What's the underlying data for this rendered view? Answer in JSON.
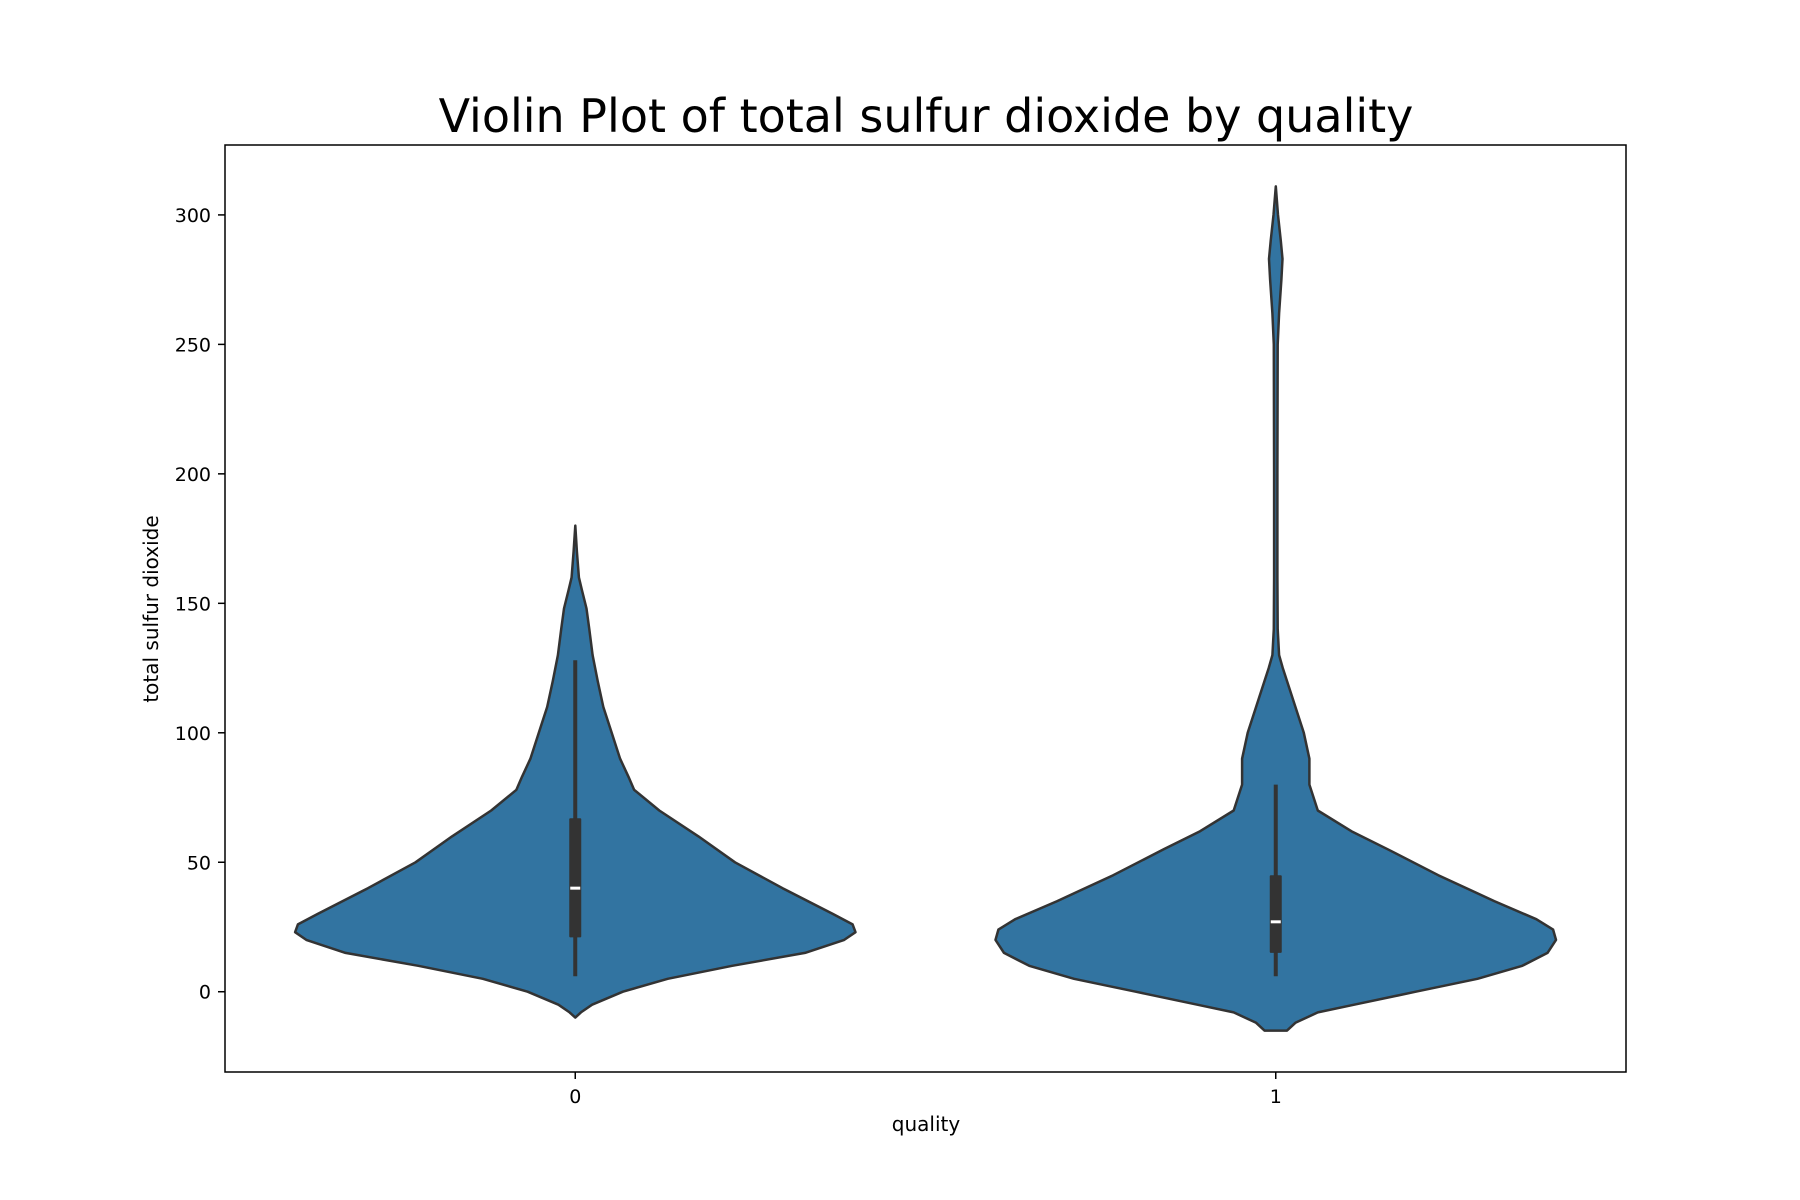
{
  "chart_data": {
    "type": "violin",
    "title": "Violin Plot of total sulfur dioxide by quality",
    "xlabel": "quality",
    "ylabel": "total sulfur dioxide",
    "ylim": [
      -31,
      327
    ],
    "yticks": [
      0,
      50,
      100,
      150,
      200,
      250,
      300
    ],
    "grid": false,
    "legend": "none",
    "colors": {
      "fill": "#3274a1",
      "edge": "#333333",
      "median": "#ffffff"
    },
    "categories": [
      "0",
      "1"
    ],
    "violins": [
      {
        "category": "0",
        "quartiles": {
          "q1": 21,
          "median": 40,
          "q3": 67
        },
        "whiskers": [
          6,
          128
        ],
        "range": [
          -10,
          180
        ],
        "density_profile": [
          [
            -10,
            0.0
          ],
          [
            -8,
            0.02
          ],
          [
            -5,
            0.06
          ],
          [
            0,
            0.17
          ],
          [
            5,
            0.33
          ],
          [
            10,
            0.56
          ],
          [
            15,
            0.82
          ],
          [
            20,
            0.96
          ],
          [
            23,
            1.0
          ],
          [
            26,
            0.99
          ],
          [
            30,
            0.92
          ],
          [
            40,
            0.74
          ],
          [
            50,
            0.57
          ],
          [
            60,
            0.44
          ],
          [
            70,
            0.3
          ],
          [
            78,
            0.21
          ],
          [
            83,
            0.19
          ],
          [
            90,
            0.16
          ],
          [
            100,
            0.13
          ],
          [
            110,
            0.1
          ],
          [
            120,
            0.08
          ],
          [
            130,
            0.062
          ],
          [
            140,
            0.05
          ],
          [
            148,
            0.04
          ],
          [
            155,
            0.024
          ],
          [
            160,
            0.013
          ],
          [
            170,
            0.006
          ],
          [
            180,
            0.0
          ]
        ]
      },
      {
        "category": "1",
        "quartiles": {
          "q1": 15,
          "median": 27,
          "q3": 45
        },
        "whiskers": [
          6,
          80
        ],
        "range": [
          -15,
          311
        ],
        "density_profile": [
          [
            -15,
            0.04
          ],
          [
            -12,
            0.07
          ],
          [
            -8,
            0.15
          ],
          [
            -5,
            0.28
          ],
          [
            0,
            0.5
          ],
          [
            5,
            0.72
          ],
          [
            10,
            0.88
          ],
          [
            15,
            0.97
          ],
          [
            20,
            1.0
          ],
          [
            24,
            0.99
          ],
          [
            28,
            0.93
          ],
          [
            35,
            0.78
          ],
          [
            45,
            0.58
          ],
          [
            55,
            0.4
          ],
          [
            62,
            0.27
          ],
          [
            70,
            0.15
          ],
          [
            80,
            0.12
          ],
          [
            90,
            0.12
          ],
          [
            100,
            0.1
          ],
          [
            110,
            0.07
          ],
          [
            120,
            0.04
          ],
          [
            125,
            0.025
          ],
          [
            130,
            0.012
          ],
          [
            140,
            0.007
          ],
          [
            160,
            0.006
          ],
          [
            200,
            0.006
          ],
          [
            250,
            0.007
          ],
          [
            262,
            0.012
          ],
          [
            275,
            0.02
          ],
          [
            283,
            0.024
          ],
          [
            290,
            0.018
          ],
          [
            300,
            0.008
          ],
          [
            311,
            0.0
          ]
        ]
      }
    ]
  }
}
